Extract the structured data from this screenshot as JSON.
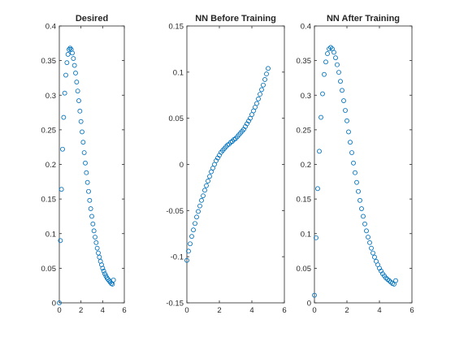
{
  "chart_data": [
    {
      "type": "scatter",
      "title": "Desired",
      "xlabel": "",
      "ylabel": "",
      "xlim": [
        0,
        6
      ],
      "ylim": [
        0,
        0.4
      ],
      "xticks": [
        0,
        2,
        4,
        6
      ],
      "yticks": [
        0,
        0.05,
        0.1,
        0.15,
        0.2,
        0.25,
        0.3,
        0.35,
        0.4
      ],
      "xtick_labels": [
        "0",
        "2",
        "4",
        "6"
      ],
      "ytick_labels": [
        "0",
        "0.05",
        "0.1",
        "0.15",
        "0.2",
        "0.25",
        "0.3",
        "0.35",
        "0.4"
      ],
      "marker_color": "#0072bd",
      "grid": false,
      "x": [
        0,
        0.1,
        0.2,
        0.3,
        0.4,
        0.5,
        0.6,
        0.7,
        0.8,
        0.9,
        1.0,
        1.1,
        1.2,
        1.3,
        1.4,
        1.5,
        1.6,
        1.7,
        1.8,
        1.9,
        2.0,
        2.1,
        2.2,
        2.3,
        2.4,
        2.5,
        2.6,
        2.7,
        2.8,
        2.9,
        3.0,
        3.1,
        3.2,
        3.3,
        3.4,
        3.5,
        3.6,
        3.7,
        3.8,
        3.9,
        4.0,
        4.1,
        4.2,
        4.3,
        4.4,
        4.5,
        4.6,
        4.7,
        4.8,
        4.9,
        5.0
      ],
      "y": [
        0.0,
        0.09,
        0.164,
        0.222,
        0.268,
        0.303,
        0.329,
        0.347,
        0.359,
        0.366,
        0.368,
        0.366,
        0.361,
        0.353,
        0.343,
        0.332,
        0.319,
        0.306,
        0.292,
        0.277,
        0.262,
        0.247,
        0.232,
        0.217,
        0.202,
        0.188,
        0.174,
        0.161,
        0.148,
        0.136,
        0.125,
        0.114,
        0.104,
        0.095,
        0.087,
        0.079,
        0.072,
        0.066,
        0.06,
        0.055,
        0.05,
        0.046,
        0.042,
        0.039,
        0.036,
        0.034,
        0.032,
        0.03,
        0.028,
        0.027,
        0.033
      ]
    },
    {
      "type": "scatter",
      "title": "NN Before Training",
      "xlabel": "",
      "ylabel": "",
      "xlim": [
        0,
        6
      ],
      "ylim": [
        -0.15,
        0.15
      ],
      "xticks": [
        0,
        2,
        4,
        6
      ],
      "yticks": [
        -0.15,
        -0.1,
        -0.05,
        0,
        0.05,
        0.1,
        0.15
      ],
      "xtick_labels": [
        "0",
        "2",
        "4",
        "6"
      ],
      "ytick_labels": [
        "-0.15",
        "-0.1",
        "-0.05",
        "0",
        "0.05",
        "0.1",
        "0.15"
      ],
      "marker_color": "#0072bd",
      "grid": false,
      "x": [
        0,
        0.1,
        0.2,
        0.3,
        0.4,
        0.5,
        0.6,
        0.7,
        0.8,
        0.9,
        1.0,
        1.1,
        1.2,
        1.3,
        1.4,
        1.5,
        1.6,
        1.7,
        1.8,
        1.9,
        2.0,
        2.1,
        2.2,
        2.3,
        2.4,
        2.5,
        2.6,
        2.7,
        2.8,
        2.9,
        3.0,
        3.1,
        3.2,
        3.3,
        3.4,
        3.5,
        3.6,
        3.7,
        3.8,
        3.9,
        4.0,
        4.1,
        4.2,
        4.3,
        4.4,
        4.5,
        4.6,
        4.7,
        4.8,
        4.9,
        5.0
      ],
      "y": [
        -0.104,
        -0.094,
        -0.086,
        -0.078,
        -0.071,
        -0.064,
        -0.057,
        -0.051,
        -0.045,
        -0.039,
        -0.034,
        -0.028,
        -0.023,
        -0.018,
        -0.013,
        -0.008,
        -0.004,
        0.0,
        0.004,
        0.007,
        0.01,
        0.013,
        0.015,
        0.017,
        0.019,
        0.021,
        0.022,
        0.024,
        0.025,
        0.027,
        0.028,
        0.03,
        0.032,
        0.034,
        0.036,
        0.038,
        0.041,
        0.044,
        0.047,
        0.05,
        0.054,
        0.058,
        0.062,
        0.066,
        0.071,
        0.076,
        0.081,
        0.086,
        0.092,
        0.098,
        0.104
      ]
    },
    {
      "type": "scatter",
      "title": "NN After Training",
      "xlabel": "",
      "ylabel": "",
      "xlim": [
        0,
        6
      ],
      "ylim": [
        0,
        0.4
      ],
      "xticks": [
        0,
        2,
        4,
        6
      ],
      "yticks": [
        0,
        0.05,
        0.1,
        0.15,
        0.2,
        0.25,
        0.3,
        0.35,
        0.4
      ],
      "xtick_labels": [
        "0",
        "2",
        "4",
        "6"
      ],
      "ytick_labels": [
        "0",
        "0.05",
        "0.1",
        "0.15",
        "0.2",
        "0.25",
        "0.3",
        "0.35",
        "0.4"
      ],
      "marker_color": "#0072bd",
      "grid": false,
      "x": [
        0,
        0.1,
        0.2,
        0.3,
        0.4,
        0.5,
        0.6,
        0.7,
        0.8,
        0.9,
        1.0,
        1.1,
        1.2,
        1.3,
        1.4,
        1.5,
        1.6,
        1.7,
        1.8,
        1.9,
        2.0,
        2.1,
        2.2,
        2.3,
        2.4,
        2.5,
        2.6,
        2.7,
        2.8,
        2.9,
        3.0,
        3.1,
        3.2,
        3.3,
        3.4,
        3.5,
        3.6,
        3.7,
        3.8,
        3.9,
        4.0,
        4.1,
        4.2,
        4.3,
        4.4,
        4.5,
        4.6,
        4.7,
        4.8,
        4.9,
        5.0
      ],
      "y": [
        0.011,
        0.094,
        0.165,
        0.219,
        0.268,
        0.302,
        0.33,
        0.348,
        0.36,
        0.367,
        0.369,
        0.367,
        0.362,
        0.354,
        0.344,
        0.333,
        0.32,
        0.307,
        0.292,
        0.278,
        0.263,
        0.247,
        0.232,
        0.217,
        0.202,
        0.188,
        0.174,
        0.161,
        0.148,
        0.136,
        0.125,
        0.114,
        0.104,
        0.095,
        0.087,
        0.079,
        0.072,
        0.066,
        0.06,
        0.055,
        0.05,
        0.046,
        0.042,
        0.039,
        0.036,
        0.034,
        0.032,
        0.03,
        0.028,
        0.027,
        0.032
      ]
    }
  ]
}
